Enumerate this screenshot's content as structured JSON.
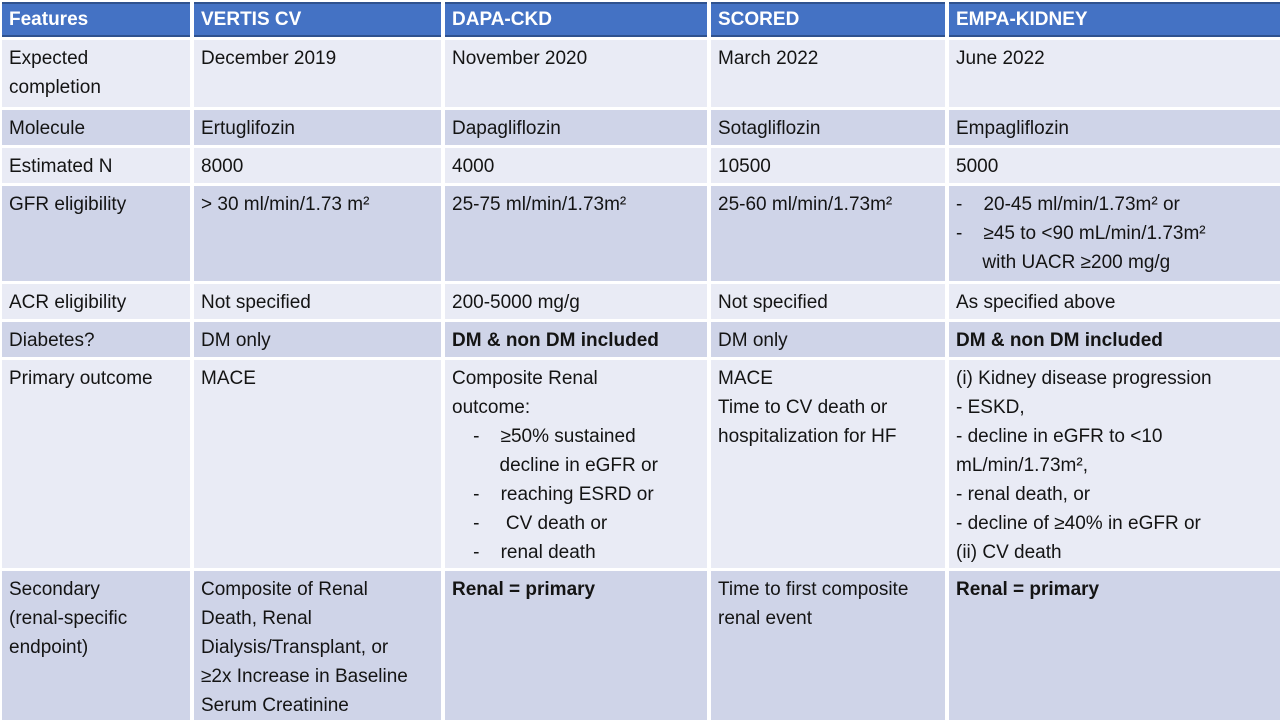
{
  "colors": {
    "header_bg": "#4472C4",
    "header_text": "#FFFFFF",
    "header_border": "#2F528F",
    "row_light": "#E9EBF5",
    "row_dark": "#CFD4E8",
    "grid_line": "#FFFFFF",
    "text": "#141414"
  },
  "table": {
    "header": {
      "columns": [
        "Features",
        "VERTIS CV",
        "DAPA-CKD",
        "SCORED",
        "EMPA-KIDNEY"
      ]
    },
    "rows": [
      {
        "feature": "Expected\ncompletion",
        "shade": "light",
        "cells": [
          {
            "text": "December 2019"
          },
          {
            "text": "November 2020"
          },
          {
            "text": "March 2022"
          },
          {
            "text": "June 2022"
          }
        ]
      },
      {
        "feature": "Molecule",
        "shade": "dark",
        "cells": [
          {
            "text": "Ertuglifozin"
          },
          {
            "text": "Dapagliflozin"
          },
          {
            "text": "Sotagliflozin"
          },
          {
            "text": "Empagliflozin"
          }
        ]
      },
      {
        "feature": "Estimated N",
        "shade": "light",
        "cells": [
          {
            "text": "8000"
          },
          {
            "text": "4000"
          },
          {
            "text": "10500"
          },
          {
            "text": "5000"
          }
        ]
      },
      {
        "feature": "GFR eligibility",
        "shade": "dark",
        "cells": [
          {
            "text": "> 30 ml/min/1.73 m²"
          },
          {
            "text": "25-75 ml/min/1.73m²"
          },
          {
            "text": "25-60 ml/min/1.73m²"
          },
          {
            "text": "-    20-45 ml/min/1.73m² or\n-    ≥45 to <90 mL/min/1.73m²\n     with UACR ≥200 mg/g"
          }
        ]
      },
      {
        "feature": "ACR eligibility",
        "shade": "light",
        "cells": [
          {
            "text": "Not specified"
          },
          {
            "text": "200-5000 mg/g"
          },
          {
            "text": "Not specified"
          },
          {
            "text": "As specified above"
          }
        ]
      },
      {
        "feature": "Diabetes?",
        "shade": "dark",
        "cells": [
          {
            "text": "DM only"
          },
          {
            "text": "DM & non DM included",
            "bold": true
          },
          {
            "text": "DM only"
          },
          {
            "text": "DM & non DM included",
            "bold": true
          }
        ]
      },
      {
        "feature": "Primary outcome",
        "shade": "light",
        "cells": [
          {
            "text": "MACE"
          },
          {
            "text": "Composite Renal\noutcome:\n    -    ≥50% sustained\n         decline in eGFR or\n    -    reaching ESRD or\n    -     CV death or\n    -    renal death"
          },
          {
            "text": "MACE\nTime to CV death or\nhospitalization for HF"
          },
          {
            "text": "(i) Kidney disease progression\n- ESKD,\n- decline in eGFR to <10\nmL/min/1.73m²,\n- renal death, or\n- decline of ≥40% in eGFR or\n(ii) CV death"
          }
        ]
      },
      {
        "feature": "Secondary\n(renal-specific\nendpoint)",
        "shade": "dark",
        "cells": [
          {
            "text": "Composite of Renal\nDeath, Renal\nDialysis/Transplant, or\n≥2x Increase in Baseline\nSerum Creatinine"
          },
          {
            "text": "Renal = primary",
            "bold": true
          },
          {
            "text": "Time to first composite\nrenal event"
          },
          {
            "text": "Renal = primary",
            "bold": true
          }
        ]
      }
    ]
  }
}
